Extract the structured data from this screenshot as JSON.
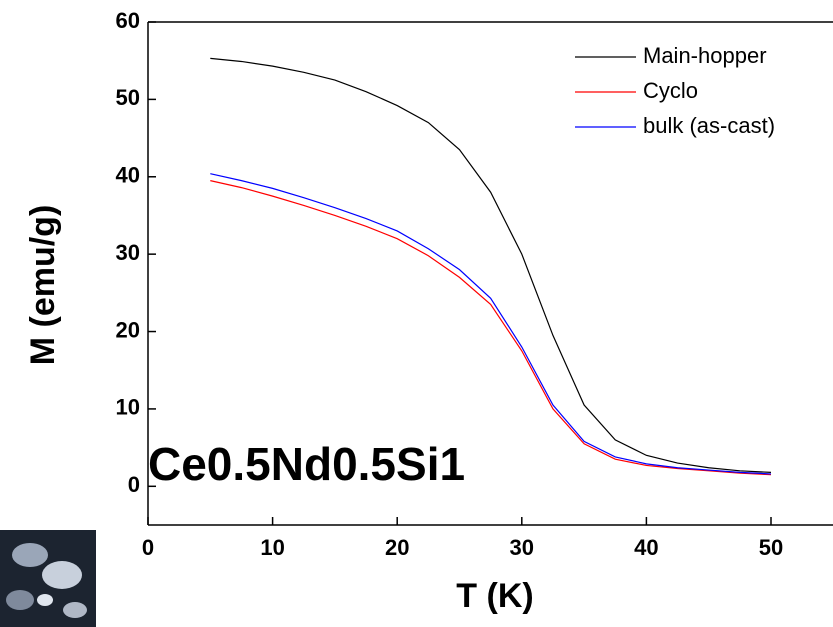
{
  "chart_data": {
    "type": "line",
    "xlabel": "T (K)",
    "ylabel": "M (emu/g)",
    "annotation": "Ce0.5Nd0.5Si1",
    "x": [
      5,
      7.5,
      10,
      12.5,
      15,
      17.5,
      20,
      22.5,
      25,
      27.5,
      30,
      32.5,
      35,
      37.5,
      40,
      42.5,
      45,
      47.5,
      50
    ],
    "series": [
      {
        "name": "Main-hopper",
        "color": "#000000",
        "values": [
          55.3,
          54.9,
          54.3,
          53.5,
          52.5,
          51.0,
          49.2,
          47.0,
          43.5,
          38.0,
          30.0,
          19.5,
          10.5,
          6.0,
          4.0,
          3.0,
          2.4,
          2.0,
          1.8
        ]
      },
      {
        "name": "Cyclo",
        "color": "#ff0000",
        "values": [
          39.5,
          38.6,
          37.5,
          36.3,
          35.0,
          33.6,
          32.0,
          29.8,
          27.0,
          23.5,
          17.5,
          10.0,
          5.5,
          3.5,
          2.7,
          2.3,
          2.0,
          1.7,
          1.5
        ]
      },
      {
        "name": "bulk (as-cast)",
        "color": "#0000ff",
        "values": [
          40.4,
          39.5,
          38.5,
          37.3,
          36.0,
          34.6,
          33.0,
          30.7,
          28.0,
          24.3,
          18.0,
          10.5,
          5.8,
          3.8,
          2.9,
          2.4,
          2.1,
          1.8,
          1.6
        ]
      }
    ],
    "xlim": [
      0,
      55
    ],
    "xticks": [
      0,
      10,
      20,
      30,
      40,
      50
    ],
    "ylim": [
      -5,
      60
    ],
    "yticks": [
      0,
      10,
      20,
      30,
      40,
      50,
      60
    ],
    "legend": "upper right"
  }
}
